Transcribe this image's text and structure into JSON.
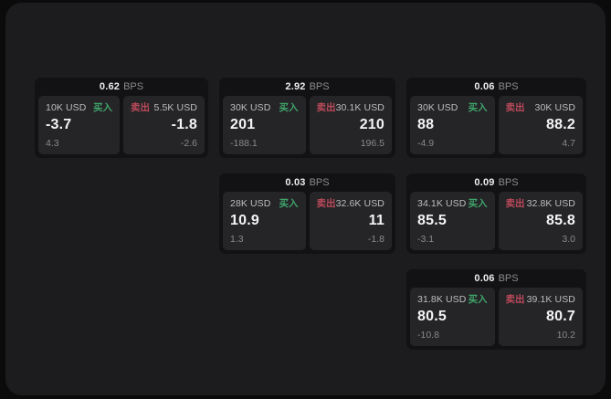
{
  "labels": {
    "bps_unit": "BPS",
    "buy": "买入",
    "sell": "卖出"
  },
  "colors": {
    "buy_green": "#3fa46a",
    "sell_red": "#bc4a5a",
    "panel_bg": "#1c1c1e",
    "card_bg": "#121214",
    "tile_bg": "#252528"
  },
  "cards": [
    {
      "bps": "0.62",
      "buy": {
        "amount": "10K USD",
        "price": "-3.7",
        "change": "4.3"
      },
      "sell": {
        "amount": "5.5K USD",
        "price": "-1.8",
        "change": "-2.6"
      }
    },
    {
      "bps": "2.92",
      "buy": {
        "amount": "30K USD",
        "price": "201",
        "change": "-188.1"
      },
      "sell": {
        "amount": "30.1K USD",
        "price": "210",
        "change": "196.5"
      }
    },
    {
      "bps": "0.06",
      "buy": {
        "amount": "30K USD",
        "price": "88",
        "change": "-4.9"
      },
      "sell": {
        "amount": "30K USD",
        "price": "88.2",
        "change": "4.7"
      }
    },
    {
      "bps": "0.03",
      "buy": {
        "amount": "28K USD",
        "price": "10.9",
        "change": "1.3"
      },
      "sell": {
        "amount": "32.6K USD",
        "price": "11",
        "change": "-1.8"
      }
    },
    {
      "bps": "0.09",
      "buy": {
        "amount": "34.1K USD",
        "price": "85.5",
        "change": "-3.1"
      },
      "sell": {
        "amount": "32.8K USD",
        "price": "85.8",
        "change": "3.0"
      }
    },
    {
      "bps": "0.06",
      "buy": {
        "amount": "31.8K USD",
        "price": "80.5",
        "change": "-10.8"
      },
      "sell": {
        "amount": "39.1K USD",
        "price": "80.7",
        "change": "10.2"
      }
    }
  ]
}
